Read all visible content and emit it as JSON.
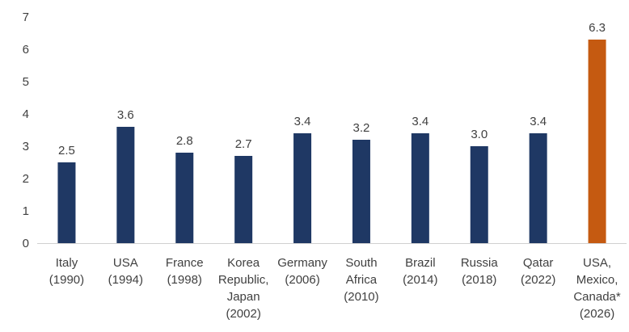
{
  "chart_data": {
    "type": "bar",
    "title": "",
    "xlabel": "",
    "ylabel": "",
    "ylim": [
      0,
      7
    ],
    "yticks": [
      0,
      1,
      2,
      3,
      4,
      5,
      6,
      7
    ],
    "grid": false,
    "categories": [
      [
        "Italy",
        "(1990)"
      ],
      [
        "USA",
        "(1994)"
      ],
      [
        "France",
        "(1998)"
      ],
      [
        "Korea",
        "Republic,",
        "Japan",
        "(2002)"
      ],
      [
        "Germany",
        "(2006)"
      ],
      [
        "South",
        "Africa",
        "(2010)"
      ],
      [
        "Brazil",
        "(2014)"
      ],
      [
        "Russia",
        "(2018)"
      ],
      [
        "Qatar",
        "(2022)"
      ],
      [
        "USA,",
        "Mexico,",
        "Canada*",
        "(2026)"
      ]
    ],
    "values": [
      2.5,
      3.6,
      2.8,
      2.7,
      3.4,
      3.2,
      3.4,
      3.0,
      3.4,
      6.3
    ],
    "data_labels": [
      "2.5",
      "3.6",
      "2.8",
      "2.7",
      "3.4",
      "3.2",
      "3.4",
      "3.0",
      "3.4",
      "6.3"
    ],
    "colors": {
      "default": "#1f3864",
      "highlight": "#c55a11"
    },
    "highlight_index": 9
  }
}
